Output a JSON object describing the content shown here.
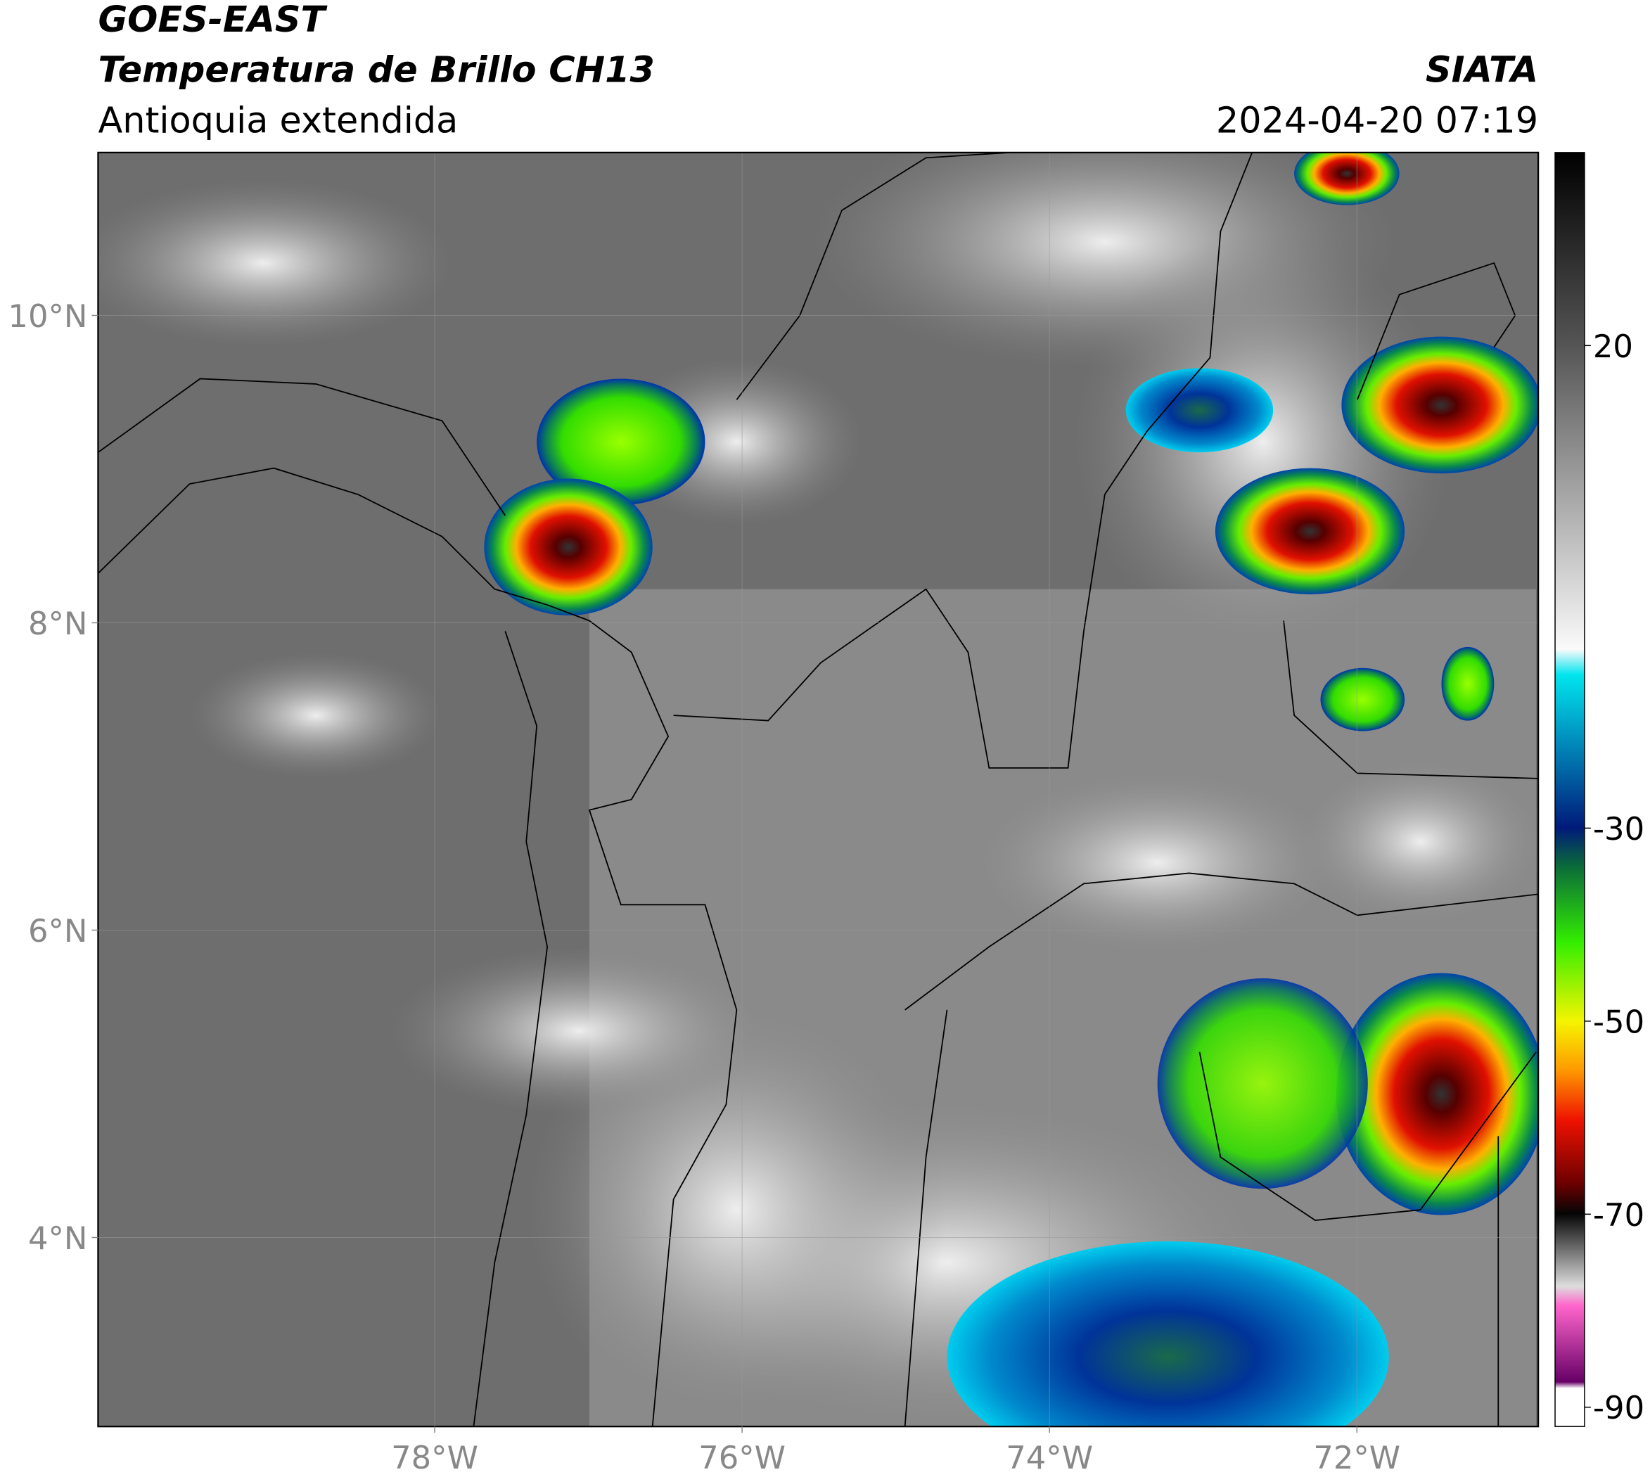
{
  "header": {
    "satellite": "GOES-EAST",
    "product": "Temperatura de Brillo CH13",
    "region": "Antioquia extendida",
    "source": "SIATA",
    "datetime": "2024-04-20 07:19"
  },
  "map": {
    "type": "map",
    "xlim": [
      -80.19,
      -70.82
    ],
    "ylim": [
      2.77,
      11.06
    ],
    "xticks": [
      {
        "value": -78,
        "label": "78°W"
      },
      {
        "value": -76,
        "label": "76°W"
      },
      {
        "value": -74,
        "label": "74°W"
      },
      {
        "value": -72,
        "label": "72°W"
      }
    ],
    "yticks": [
      {
        "value": 10,
        "label": "10°N"
      },
      {
        "value": 8,
        "label": "8°N"
      },
      {
        "value": 6,
        "label": "6°N"
      },
      {
        "value": 4,
        "label": "4°N"
      }
    ],
    "grid": true
  },
  "colorbar": {
    "clim": [
      -92,
      40
    ],
    "ticks": [
      20,
      -30,
      -50,
      -70,
      -90
    ]
  }
}
